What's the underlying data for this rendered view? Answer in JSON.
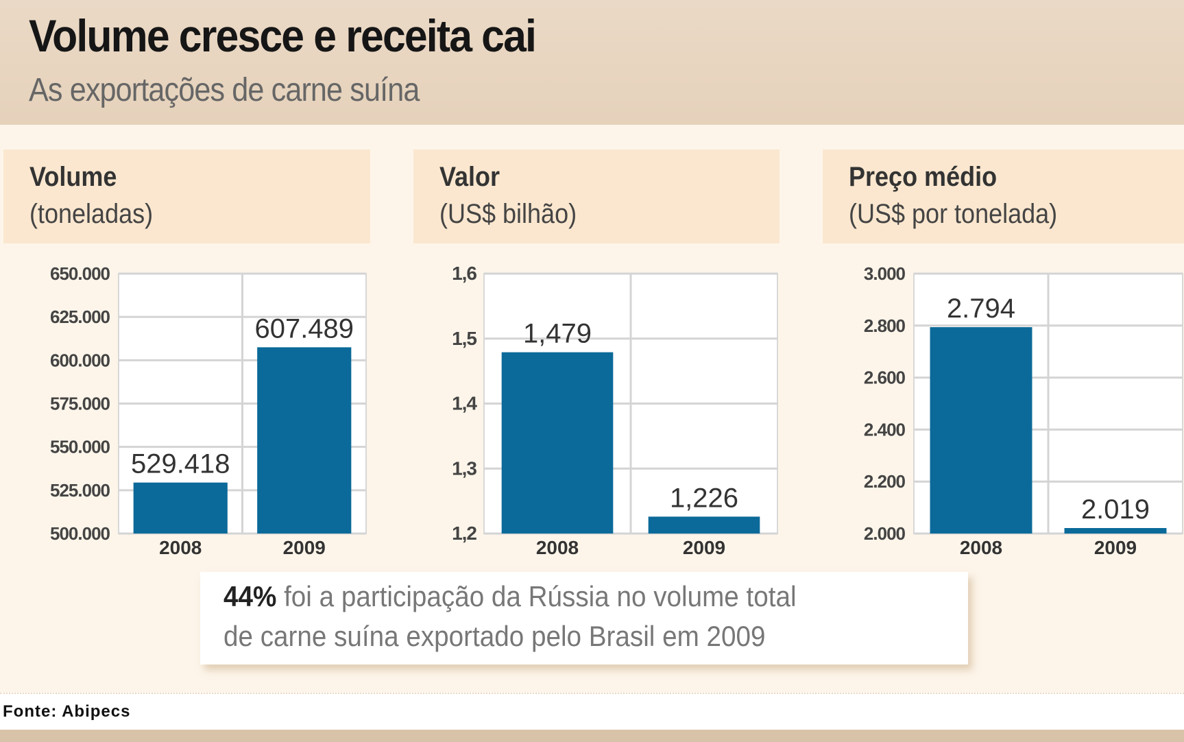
{
  "header": {
    "title": "Volume cresce e receita cai",
    "subtitle": "As exportações de carne suína"
  },
  "chart_data": [
    {
      "type": "bar",
      "title": "Volume",
      "ylabel": "(toneladas)",
      "categories": [
        "2008",
        "2009"
      ],
      "values": [
        529418,
        607489
      ],
      "value_labels": [
        "529.418",
        "607.489"
      ],
      "ylim": [
        500000,
        650000
      ],
      "yticks": [
        500000,
        525000,
        550000,
        575000,
        600000,
        625000,
        650000
      ],
      "ytick_labels": [
        "500.000",
        "525.000",
        "550.000",
        "575.000",
        "600.000",
        "625.000",
        "650.000"
      ],
      "grid": true,
      "color": "#0b6a99"
    },
    {
      "type": "bar",
      "title": "Valor",
      "ylabel": "(US$ bilhão)",
      "categories": [
        "2008",
        "2009"
      ],
      "values": [
        1.479,
        1.226
      ],
      "value_labels": [
        "1,479",
        "1,226"
      ],
      "ylim": [
        1.2,
        1.6
      ],
      "yticks": [
        1.2,
        1.3,
        1.4,
        1.5,
        1.6
      ],
      "ytick_labels": [
        "1,2",
        "1,3",
        "1,4",
        "1,5",
        "1,6"
      ],
      "grid": true,
      "color": "#0b6a99"
    },
    {
      "type": "bar",
      "title": "Preço médio",
      "ylabel": "(US$ por tonelada)",
      "categories": [
        "2008",
        "2009"
      ],
      "values": [
        2794,
        2019
      ],
      "value_labels": [
        "2.794",
        "2.019"
      ],
      "ylim": [
        2000,
        3000
      ],
      "yticks": [
        2000,
        2200,
        2400,
        2600,
        2800,
        3000
      ],
      "ytick_labels": [
        "2.000",
        "2.200",
        "2.400",
        "2.600",
        "2.800",
        "3.000"
      ],
      "grid": true,
      "color": "#0b6a99"
    }
  ],
  "annotation": {
    "highlight": "44%",
    "line1": " foi a participação da Rússia no volume total",
    "line2": "de carne suína exportado pelo Brasil em 2009"
  },
  "source": "Fonte: Abipecs"
}
